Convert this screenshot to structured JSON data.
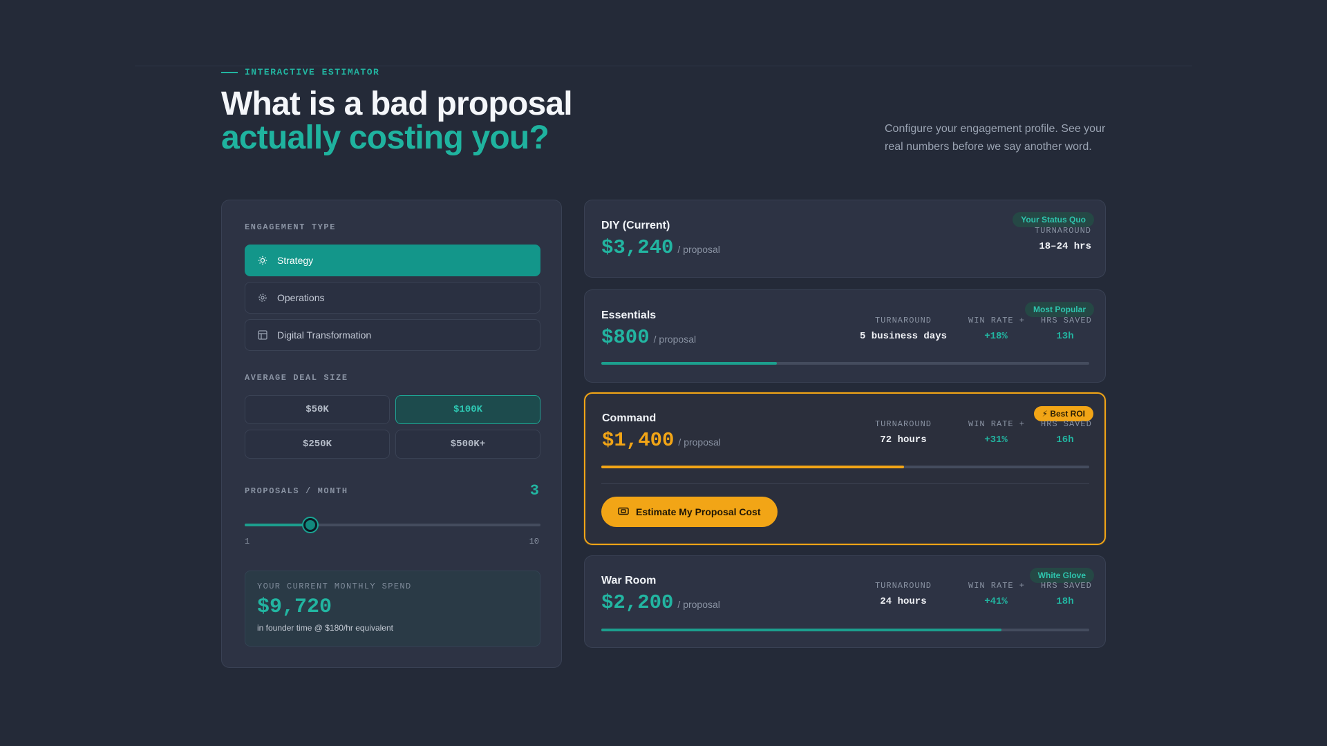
{
  "header": {
    "eyebrow": "INTERACTIVE ESTIMATOR",
    "title_line1": "What is a bad proposal",
    "title_line2": "actually costing you?",
    "intro": "Configure your engagement profile. See your real numbers before we say another word."
  },
  "colors": {
    "accent_teal": "#1fb39f",
    "accent_gold": "#f2a516",
    "background": "#242a38"
  },
  "estimator": {
    "engagement_label": "ENGAGEMENT TYPE",
    "engagement_types": [
      {
        "label": "Strategy",
        "icon": "lightbulb-icon",
        "selected": true
      },
      {
        "label": "Operations",
        "icon": "gear-icon",
        "selected": false
      },
      {
        "label": "Digital Transformation",
        "icon": "layout-icon",
        "selected": false
      }
    ],
    "deal_label": "AVERAGE DEAL SIZE",
    "deal_sizes": [
      {
        "label": "$50K",
        "selected": false
      },
      {
        "label": "$100K",
        "selected": true
      },
      {
        "label": "$250K",
        "selected": false
      },
      {
        "label": "$500K+",
        "selected": false
      }
    ],
    "proposals_label": "PROPOSALS / MONTH",
    "proposals_value": "3",
    "slider": {
      "min": 1,
      "max": 10,
      "value": 3,
      "min_label": "1",
      "max_label": "10"
    },
    "spend": {
      "label": "YOUR CURRENT MONTHLY SPEND",
      "value": "$9,720",
      "note": "in founder time @ $180/hr equivalent"
    }
  },
  "tiers": [
    {
      "name": "DIY (Current)",
      "price": "$3,240",
      "per": "/ proposal",
      "badge": "Your Status Quo",
      "turnaround_label": "TURNAROUND",
      "turnaround": "18–24 hrs"
    },
    {
      "name": "Essentials",
      "price": "$800",
      "per": "/ proposal",
      "badge": "Most Popular",
      "turnaround_label": "TURNAROUND",
      "turnaround": "5 business days",
      "win_label": "WIN RATE +",
      "win": "+18%",
      "hrs_label": "HRS SAVED",
      "hrs": "13h",
      "progress": 0.36
    },
    {
      "name": "Command",
      "price": "$1,400",
      "per": "/ proposal",
      "badge": "⚡ Best ROI",
      "turnaround_label": "TURNAROUND",
      "turnaround": "72 hours",
      "win_label": "WIN RATE +",
      "win": "+31%",
      "hrs_label": "HRS SAVED",
      "hrs": "16h",
      "progress": 0.62,
      "cta": "Estimate My Proposal Cost"
    },
    {
      "name": "War Room",
      "price": "$2,200",
      "per": "/ proposal",
      "badge": "White Glove",
      "turnaround_label": "TURNAROUND",
      "turnaround": "24 hours",
      "win_label": "WIN RATE +",
      "win": "+41%",
      "hrs_label": "HRS SAVED",
      "hrs": "18h",
      "progress": 0.82
    }
  ]
}
